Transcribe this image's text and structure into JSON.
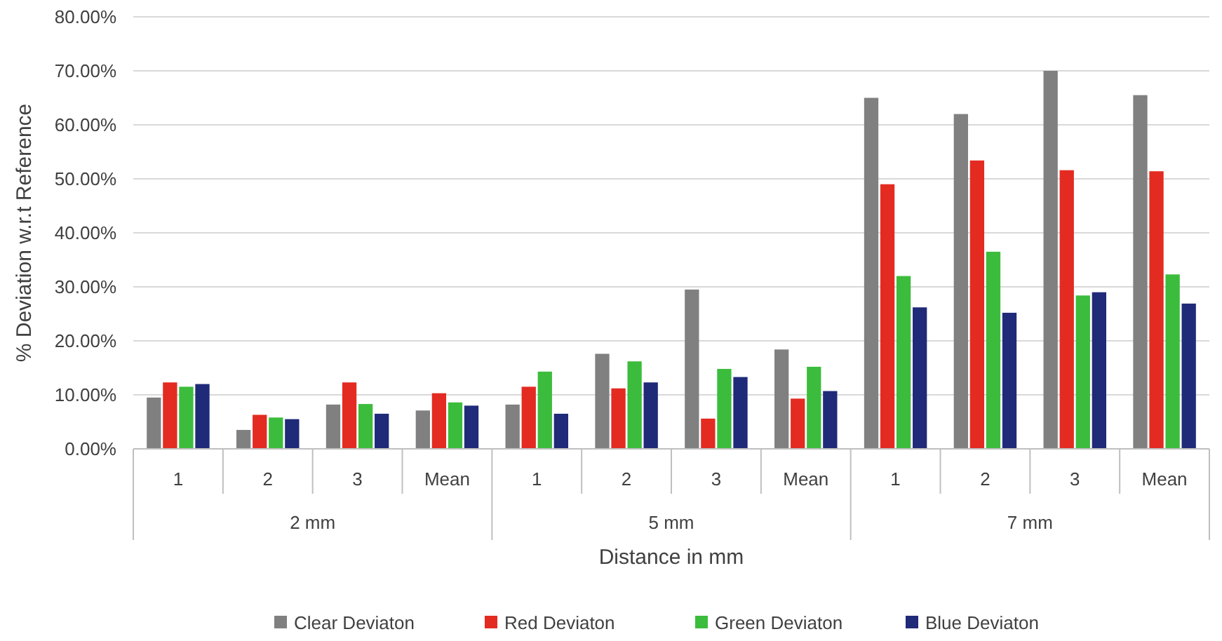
{
  "chart_data": {
    "type": "bar",
    "xlabel": "Distance in mm",
    "ylabel": "% Deviation w.r.t Reference",
    "categories": [
      "1",
      "2",
      "3",
      "Mean",
      "1",
      "2",
      "3",
      "Mean",
      "1",
      "2",
      "3",
      "Mean"
    ],
    "annotations": [
      "2 mm",
      "5 mm",
      "7 mm"
    ],
    "series": [
      {
        "name": "Clear Deviaton",
        "color": "#808080",
        "values": [
          9.5,
          3.5,
          8.2,
          7.1,
          8.2,
          17.6,
          29.5,
          18.4,
          65,
          62,
          70,
          65.5
        ]
      },
      {
        "name": "Red Deviaton",
        "color": "#e32b22",
        "values": [
          12.3,
          6.3,
          12.3,
          10.3,
          11.5,
          11.2,
          5.6,
          9.3,
          49,
          53.4,
          51.6,
          51.4
        ]
      },
      {
        "name": "Green Deviaton",
        "color": "#3cbc3c",
        "values": [
          11.5,
          5.8,
          8.3,
          8.6,
          14.3,
          16.2,
          14.8,
          15.2,
          32,
          36.5,
          28.4,
          32.3
        ]
      },
      {
        "name": "Blue Deviaton",
        "color": "#1f2a78",
        "values": [
          12,
          5.5,
          6.5,
          8,
          6.5,
          12.3,
          13.3,
          10.7,
          26.2,
          25.2,
          29,
          26.9
        ]
      }
    ],
    "ylim": [
      0,
      80
    ],
    "yticks": [
      {
        "value": 0,
        "label": "0.00%"
      },
      {
        "value": 10,
        "label": "10.00%"
      },
      {
        "value": 20,
        "label": "20.00%"
      },
      {
        "value": 30,
        "label": "30.00%"
      },
      {
        "value": 40,
        "label": "40.00%"
      },
      {
        "value": 50,
        "label": "50.00%"
      },
      {
        "value": 60,
        "label": "60.00%"
      },
      {
        "value": 70,
        "label": "70.00%"
      },
      {
        "value": 80,
        "label": "80.00%"
      }
    ],
    "grid": "y",
    "legend": "bottom"
  }
}
